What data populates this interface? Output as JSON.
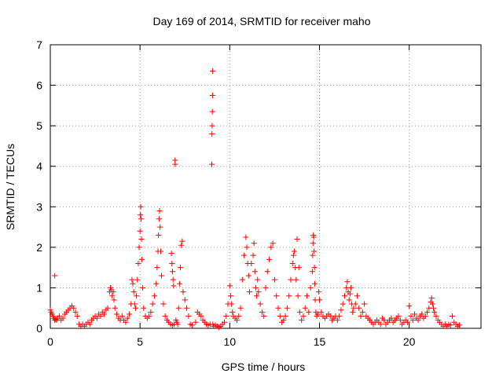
{
  "chart_data": {
    "type": "scatter",
    "title": "Day 169 of 2014, SRMTID for receiver maho",
    "xlabel": "GPS time / hours",
    "ylabel": "SRMTID / TECUs",
    "xlim": [
      0,
      24
    ],
    "ylim": [
      0,
      7
    ],
    "xticks": [
      0,
      5,
      10,
      15,
      20
    ],
    "yticks": [
      0,
      1,
      2,
      3,
      4,
      5,
      6,
      7
    ],
    "xtick_labels": [
      "0",
      "5",
      "10",
      "15",
      "20"
    ],
    "ytick_labels": [
      "0",
      "1",
      "2",
      "3",
      "4",
      "5",
      "6",
      "7"
    ],
    "grid": true,
    "marker": "+",
    "marker_color": "#ff0000",
    "series": [
      {
        "name": "SRMTID",
        "x": [
          0.0,
          0.05,
          0.1,
          0.15,
          0.2,
          0.25,
          0.3,
          0.35,
          0.4,
          0.5,
          0.6,
          0.7,
          0.8,
          0.9,
          1.0,
          1.1,
          1.2,
          1.3,
          1.4,
          1.5,
          0.25,
          1.6,
          1.7,
          1.8,
          1.9,
          2.0,
          2.1,
          2.2,
          2.3,
          2.4,
          2.5,
          2.6,
          2.7,
          2.8,
          2.9,
          3.0,
          3.1,
          3.2,
          3.3,
          3.35,
          3.4,
          3.45,
          3.5,
          3.55,
          3.6,
          3.7,
          3.8,
          3.9,
          4.0,
          4.1,
          4.2,
          4.3,
          4.4,
          4.5,
          4.55,
          4.6,
          4.65,
          4.7,
          4.75,
          4.8,
          4.85,
          4.9,
          4.95,
          5.0,
          5.02,
          5.04,
          5.06,
          5.08,
          5.1,
          5.15,
          5.2,
          5.3,
          5.4,
          5.5,
          5.6,
          5.7,
          5.8,
          5.9,
          5.95,
          6.0,
          6.03,
          6.06,
          6.09,
          6.12,
          6.15,
          6.2,
          6.3,
          6.4,
          6.5,
          6.6,
          6.7,
          6.8,
          6.9,
          6.75,
          6.78,
          6.81,
          6.84,
          6.87,
          6.95,
          6.96,
          7.0,
          7.05,
          7.1,
          7.15,
          7.2,
          7.25,
          7.3,
          7.35,
          7.4,
          7.5,
          7.6,
          7.7,
          7.8,
          7.9,
          8.1,
          8.2,
          8.3,
          8.4,
          8.5,
          8.6,
          8.7,
          8.8,
          8.9,
          9.0,
          9.01,
          9.02,
          9.03,
          9.04,
          9.05,
          9.06,
          9.1,
          9.2,
          9.3,
          9.4,
          9.5,
          9.6,
          9.7,
          9.8,
          9.9,
          10.0,
          10.05,
          10.1,
          10.15,
          10.2,
          10.3,
          10.4,
          10.5,
          10.6,
          10.7,
          10.8,
          10.9,
          10.95,
          11.0,
          11.05,
          11.1,
          11.2,
          11.3,
          11.35,
          11.4,
          11.45,
          11.5,
          11.55,
          11.6,
          11.7,
          11.8,
          11.9,
          12.0,
          12.1,
          12.2,
          12.3,
          12.4,
          12.5,
          12.6,
          12.7,
          12.8,
          12.9,
          13.0,
          13.1,
          13.2,
          13.3,
          13.4,
          13.5,
          13.55,
          13.6,
          13.65,
          13.7,
          13.75,
          13.8,
          13.85,
          13.9,
          14.0,
          14.1,
          14.2,
          14.3,
          14.4,
          14.5,
          14.6,
          14.62,
          14.64,
          14.66,
          14.68,
          14.7,
          14.72,
          14.74,
          14.76,
          14.8,
          14.85,
          14.9,
          14.95,
          15.0,
          15.1,
          15.2,
          15.3,
          15.4,
          15.5,
          15.6,
          15.7,
          15.8,
          15.9,
          16.0,
          16.1,
          16.2,
          16.3,
          16.4,
          16.5,
          16.55,
          16.6,
          16.65,
          16.7,
          16.75,
          16.8,
          16.85,
          16.9,
          17.0,
          17.1,
          17.2,
          17.3,
          17.4,
          17.5,
          17.6,
          17.7,
          17.8,
          17.9,
          18.0,
          18.1,
          18.2,
          18.3,
          18.4,
          18.5,
          18.6,
          18.7,
          18.8,
          18.9,
          19.0,
          19.1,
          19.2,
          19.3,
          19.4,
          19.5,
          19.6,
          19.7,
          19.8,
          19.9,
          20.0,
          20.1,
          20.2,
          20.3,
          20.4,
          20.5,
          20.6,
          20.7,
          20.8,
          20.9,
          21.0,
          21.1,
          21.2,
          21.25,
          21.3,
          21.35,
          21.4,
          21.5,
          21.6,
          21.7,
          21.8,
          21.9,
          22.0,
          22.1,
          22.2,
          22.3,
          22.4,
          22.5,
          22.6,
          22.7,
          22.8
        ],
        "y": [
          0.45,
          0.4,
          0.35,
          0.3,
          0.25,
          0.2,
          0.22,
          0.2,
          0.25,
          0.3,
          0.2,
          0.25,
          0.35,
          0.4,
          0.45,
          0.5,
          0.55,
          0.5,
          0.4,
          0.3,
          1.3,
          0.1,
          0.05,
          0.1,
          0.05,
          0.1,
          0.15,
          0.1,
          0.2,
          0.25,
          0.3,
          0.25,
          0.35,
          0.3,
          0.4,
          0.35,
          0.45,
          0.5,
          0.9,
          1.0,
          0.95,
          0.8,
          0.9,
          0.7,
          0.5,
          0.35,
          0.25,
          0.2,
          0.3,
          0.2,
          0.15,
          0.25,
          0.35,
          0.6,
          1.2,
          1.1,
          0.9,
          0.6,
          0.5,
          0.8,
          1.2,
          1.6,
          2.0,
          2.4,
          2.8,
          3.0,
          2.7,
          2.2,
          1.7,
          1.0,
          0.5,
          0.3,
          0.25,
          0.3,
          0.4,
          0.6,
          0.8,
          1.1,
          1.5,
          1.9,
          2.3,
          2.7,
          2.9,
          2.5,
          1.9,
          1.3,
          0.6,
          0.3,
          0.2,
          0.15,
          0.1,
          0.08,
          0.1,
          1.85,
          1.6,
          1.4,
          1.2,
          1.05,
          4.15,
          4.05,
          0.2,
          0.15,
          0.1,
          0.5,
          1.1,
          1.5,
          2.05,
          2.15,
          0.9,
          0.7,
          0.5,
          0.3,
          0.1,
          0.08,
          0.15,
          0.4,
          0.35,
          0.3,
          0.2,
          0.15,
          0.1,
          0.08,
          0.1,
          4.05,
          4.8,
          5.0,
          5.35,
          5.75,
          6.35,
          0.1,
          0.05,
          0.08,
          0.05,
          0.03,
          0.05,
          0.1,
          0.15,
          0.3,
          0.6,
          1.05,
          0.8,
          0.6,
          0.4,
          0.3,
          0.25,
          0.2,
          0.3,
          0.5,
          1.2,
          1.8,
          2.25,
          2.0,
          1.6,
          1.3,
          0.9,
          1.6,
          1.8,
          2.1,
          1.4,
          1.0,
          0.8,
          1.2,
          0.9,
          0.6,
          0.4,
          0.3,
          1.0,
          1.4,
          1.7,
          2.0,
          2.1,
          1.2,
          0.8,
          0.5,
          0.3,
          0.15,
          0.2,
          0.3,
          0.5,
          0.8,
          1.2,
          1.6,
          1.8,
          1.9,
          1.5,
          1.2,
          2.2,
          0.8,
          1.5,
          0.4,
          0.2,
          0.3,
          0.5,
          0.8,
          0.4,
          1.0,
          1.4,
          1.8,
          2.1,
          2.3,
          2.25,
          1.9,
          1.5,
          1.1,
          0.7,
          0.4,
          0.3,
          0.35,
          0.9,
          0.7,
          0.4,
          0.3,
          0.25,
          0.3,
          0.35,
          0.3,
          0.2,
          0.25,
          0.3,
          0.2,
          0.3,
          0.45,
          0.6,
          0.8,
          1.0,
          1.15,
          0.9,
          0.7,
          0.85,
          1.0,
          0.6,
          0.4,
          0.5,
          0.6,
          0.8,
          0.5,
          0.3,
          0.4,
          0.6,
          0.3,
          0.25,
          0.2,
          0.15,
          0.1,
          0.15,
          0.2,
          0.15,
          0.1,
          0.25,
          0.2,
          0.1,
          0.15,
          0.2,
          0.25,
          0.15,
          0.2,
          0.25,
          0.3,
          0.2,
          0.1,
          0.15,
          0.2,
          0.15,
          0.55,
          0.3,
          0.2,
          0.35,
          0.25,
          0.2,
          0.3,
          0.35,
          0.25,
          0.3,
          0.4,
          0.5,
          0.65,
          0.75,
          0.6,
          0.5,
          0.4,
          0.3,
          0.2,
          0.15,
          0.1,
          0.05,
          0.1,
          0.05,
          0.1,
          0.08,
          0.3,
          0.15,
          0.1,
          0.05,
          0.08
        ]
      }
    ]
  }
}
